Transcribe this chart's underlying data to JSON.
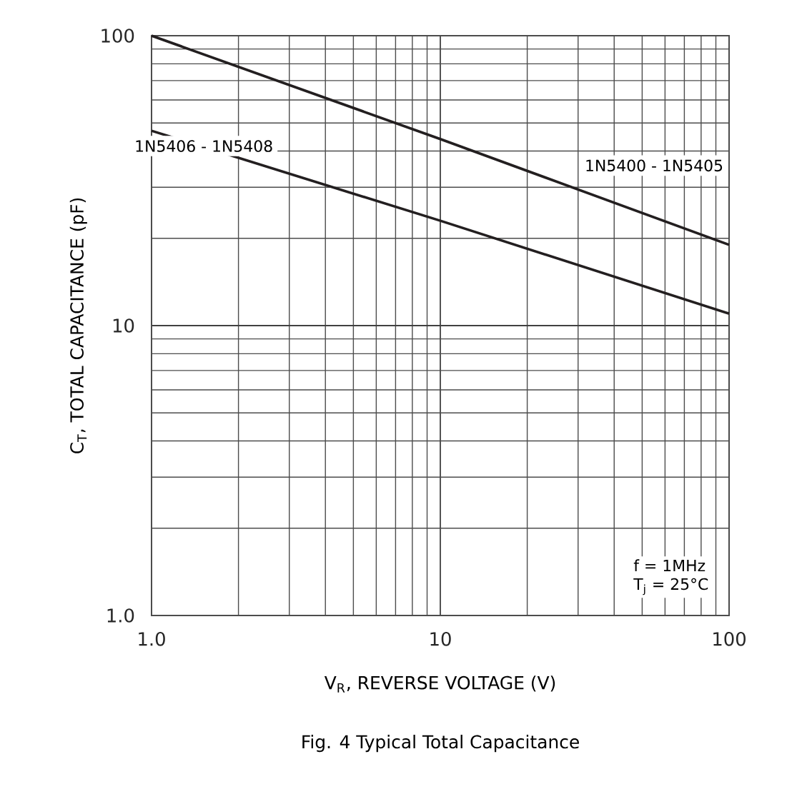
{
  "chart_data": {
    "type": "line",
    "title": "Fig. 4  Typical Total Capacitance",
    "xlabel": "V$_{R}$, REVERSE VOLTAGE (V)",
    "ylabel": "C$_{T}$, TOTAL CAPACITANCE (pF)",
    "x": [
      1,
      10,
      100
    ],
    "series": [
      {
        "name": "1N5400 - 1N5405",
        "color": "#231f20",
        "values": [
          100,
          44,
          19
        ]
      },
      {
        "name": "1N5406 - 1N5408",
        "color": "#231f20",
        "values": [
          47,
          23,
          11
        ]
      }
    ],
    "log": "xy",
    "grid": true,
    "xlim": [
      1,
      100
    ],
    "ylim": [
      1,
      100
    ],
    "xticks": [
      {
        "value": 1,
        "label": "1.0"
      },
      10,
      100
    ],
    "yticks": [
      {
        "value": 1,
        "label": "1.0"
      },
      10,
      100
    ],
    "annotations": [
      "f = 1MHz",
      "T$_{j}$ = 25°C"
    ]
  }
}
